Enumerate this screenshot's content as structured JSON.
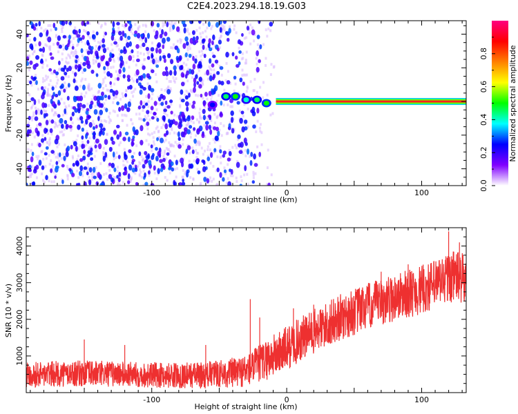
{
  "page": {
    "title": "C2E4.2023.294.18.19.G03"
  },
  "chart_data": [
    {
      "type": "heatmap",
      "title": "C2E4.2023.294.18.19.G03",
      "xlabel": "Height of straight line (km)",
      "ylabel": "Frequency (Hz)",
      "xlim": [
        -193,
        133
      ],
      "ylim": [
        -50,
        48
      ],
      "x_ticks": [
        -100,
        0,
        100
      ],
      "x_tick_labels": [
        "-100",
        "0",
        "100"
      ],
      "y_ticks": [
        -40,
        -20,
        0,
        20,
        40
      ],
      "y_tick_labels": [
        "-40",
        "-20",
        "0",
        "20",
        "40"
      ],
      "colorbar": {
        "label": "Normalized spectral amplitude",
        "range": [
          0,
          1
        ],
        "ticks": [
          0.0,
          0.2,
          0.4,
          0.6,
          0.8
        ],
        "tick_labels": [
          "0.0",
          "0.2",
          "0.4",
          "0.6",
          "0.8"
        ],
        "colors": [
          "#ffffff",
          "#8000ff",
          "#0000ff",
          "#00ffff",
          "#00ff00",
          "#ffff00",
          "#ff8000",
          "#ff0000",
          "#ff0080"
        ]
      },
      "features": {
        "noise_region_x": [
          -193,
          -8
        ],
        "noise_dominant_color": "#7b2cf0",
        "noise_low_level": 0.15,
        "noise_high_level": 0.3,
        "signal_line": {
          "x_range": [
            -8,
            133
          ],
          "frequency": 0,
          "level": 0.95,
          "color": "#ff2020"
        },
        "transition_blobs": [
          {
            "x": -55,
            "f": -2,
            "level": 0.25
          },
          {
            "x": -45,
            "f": 3,
            "level": 0.45
          },
          {
            "x": -38,
            "f": 3,
            "level": 0.5
          },
          {
            "x": -30,
            "f": 1,
            "level": 0.4
          },
          {
            "x": -22,
            "f": 1,
            "level": 0.45
          },
          {
            "x": -15,
            "f": -1,
            "level": 0.5
          }
        ]
      },
      "grid": false
    },
    {
      "type": "line",
      "xlabel": "Height of straight line (km)",
      "ylabel": "SNR (10 * v/v)",
      "xlim": [
        -193,
        133
      ],
      "ylim": [
        0,
        4500
      ],
      "x_ticks": [
        -100,
        0,
        100
      ],
      "x_tick_labels": [
        "-100",
        "0",
        "100"
      ],
      "y_ticks": [
        1000,
        2000,
        3000,
        4000
      ],
      "y_tick_labels": [
        "1000",
        "2000",
        "3000",
        "4000"
      ],
      "color": "#ee3030",
      "grid": false,
      "series": [
        {
          "x": [
            -193,
            -180,
            -160,
            -140,
            -120,
            -100,
            -80,
            -60,
            -50,
            -40,
            -30,
            -20,
            -10,
            0,
            10,
            20,
            30,
            40,
            50,
            60,
            70,
            80,
            90,
            100,
            110,
            120,
            125,
            130,
            133
          ],
          "center": [
            500,
            500,
            520,
            520,
            500,
            480,
            470,
            480,
            520,
            540,
            600,
            800,
            1000,
            1200,
            1450,
            1650,
            1850,
            2050,
            2200,
            2350,
            2450,
            2600,
            2700,
            2800,
            2950,
            3150,
            3200,
            3100,
            3000
          ],
          "spread": [
            350,
            350,
            360,
            360,
            350,
            350,
            350,
            370,
            380,
            420,
            450,
            520,
            600,
            620,
            620,
            620,
            630,
            640,
            650,
            650,
            650,
            660,
            660,
            680,
            700,
            720,
            720,
            720,
            720
          ]
        }
      ],
      "spikes": [
        {
          "x": -150,
          "y": 1450
        },
        {
          "x": -120,
          "y": 1300
        },
        {
          "x": -60,
          "y": 1300
        },
        {
          "x": -27,
          "y": 2550
        },
        {
          "x": -20,
          "y": 2050
        },
        {
          "x": 5,
          "y": 2300
        },
        {
          "x": 20,
          "y": 2400
        },
        {
          "x": 38,
          "y": 2400
        },
        {
          "x": 70,
          "y": 3300
        },
        {
          "x": 90,
          "y": 3500
        },
        {
          "x": 120,
          "y": 4400
        },
        {
          "x": 128,
          "y": 4100
        }
      ]
    }
  ]
}
